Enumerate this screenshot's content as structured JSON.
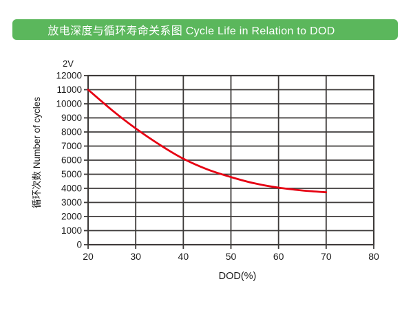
{
  "header": {
    "title": "放电深度与循环寿命关系图 Cycle Life in Relation to DOD"
  },
  "colors": {
    "header_green": "#5bb75c",
    "curve_red": "#e60012",
    "grid_dark": "#3d3a39",
    "text_dark": "#1a1a1a"
  },
  "chart_data": {
    "type": "line",
    "title": "放电深度与循环寿命关系图 Cycle Life in Relation to DOD",
    "xlabel": "DOD(%)",
    "ylabel": "循环次数 Number of cycles",
    "series_label": "2V",
    "x": [
      20,
      25,
      30,
      35,
      40,
      45,
      50,
      55,
      60,
      65,
      70
    ],
    "y": [
      11000,
      9550,
      8250,
      7100,
      6100,
      5350,
      4800,
      4350,
      4050,
      3850,
      3720
    ],
    "xlim": [
      20,
      80
    ],
    "ylim": [
      0,
      12000
    ],
    "xticks": [
      20,
      30,
      40,
      50,
      60,
      70,
      80
    ],
    "yticks": [
      0,
      1000,
      2000,
      3000,
      4000,
      5000,
      6000,
      7000,
      8000,
      9000,
      10000,
      11000,
      12000
    ],
    "grid": true,
    "legend_position": "none",
    "line_color": "#e60012",
    "grid_color": "#3d3a39"
  }
}
